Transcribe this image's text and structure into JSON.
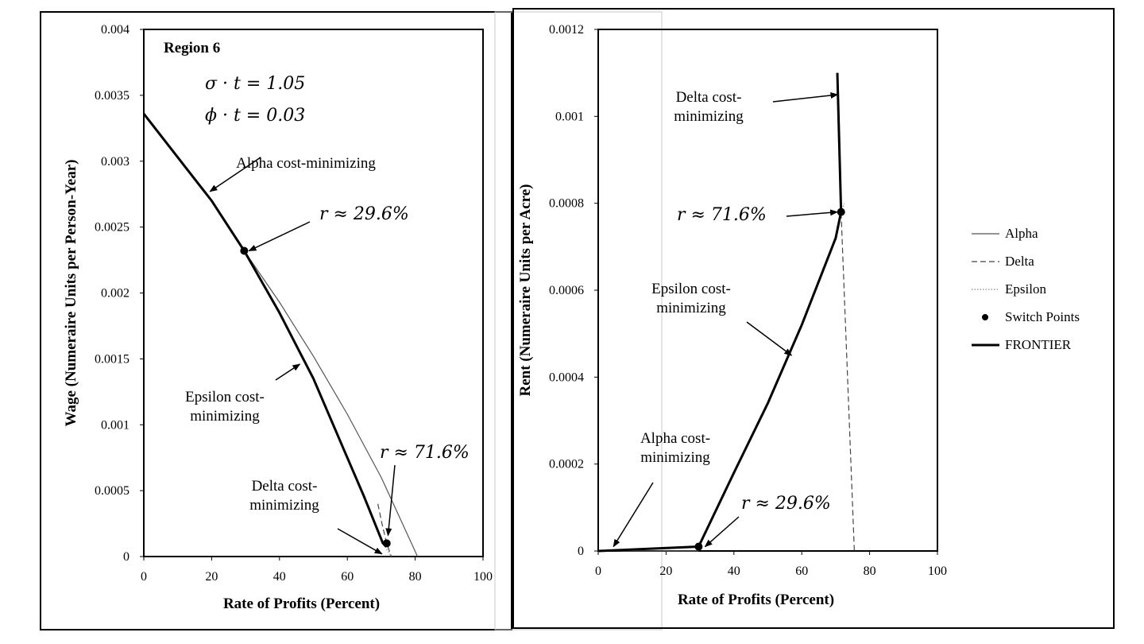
{
  "chart_data": [
    {
      "type": "line",
      "panel_label": "Region 6",
      "params": [
        "σ · t = 1.05",
        "ϕ · t = 0.03"
      ],
      "xlabel": "Rate of Profits (Percent)",
      "ylabel": "Wage (Numeraire Units per Person-Year)",
      "xlim": [
        0,
        100
      ],
      "ylim": [
        0,
        0.004
      ],
      "x_ticks": [
        "0",
        "20",
        "40",
        "60",
        "80",
        "100"
      ],
      "y_ticks": [
        "0",
        "0.0005",
        "0.001",
        "0.0015",
        "0.002",
        "0.0025",
        "0.003",
        "0.0035",
        "0.004"
      ],
      "grid": false,
      "series": [
        {
          "name": "Alpha",
          "style": "solid-thin",
          "x": [
            0,
            10,
            20,
            29.6,
            40,
            50,
            60,
            70,
            80.7
          ],
          "y": [
            0.00336,
            0.00303,
            0.0027,
            0.00232,
            0.00193,
            0.00152,
            0.00108,
            0.0006,
            0.0
          ]
        },
        {
          "name": "Delta",
          "style": "dashed",
          "x": [
            69.0,
            70.2,
            71.6,
            73.0
          ],
          "y": [
            0.0004,
            0.00025,
            0.0001,
            0.0
          ]
        },
        {
          "name": "Epsilon",
          "style": "dotted",
          "x": [
            29.6,
            40,
            50,
            60,
            65,
            70.5,
            73.0
          ],
          "y": [
            0.00232,
            0.00185,
            0.00135,
            0.00075,
            0.00045,
            0.0001,
            0.0
          ]
        },
        {
          "name": "FRONTIER",
          "style": "solid-thick",
          "x": [
            0,
            10,
            20,
            29.6,
            40,
            50,
            60,
            65,
            70.5,
            71.6
          ],
          "y": [
            0.00336,
            0.00303,
            0.0027,
            0.00232,
            0.00185,
            0.00135,
            0.00075,
            0.00045,
            0.0001,
            0.0001
          ]
        }
      ],
      "switch_points": [
        {
          "x": 29.6,
          "y": 0.00232
        },
        {
          "x": 71.6,
          "y": 0.0001
        }
      ],
      "annotations": [
        {
          "text": "Alpha cost-minimizing",
          "lines": [
            "Alpha cost-minimizing"
          ],
          "target": [
            19.5,
            0.00277
          ]
        },
        {
          "text": "r ≈ 29.6%",
          "lines": [
            "r ≈ 29.6%"
          ],
          "target": [
            31.0,
            0.00232
          ]
        },
        {
          "text": "Epsilon cost-minimizing",
          "lines": [
            "Epsilon cost-",
            "minimizing"
          ],
          "target": [
            46.0,
            0.00146
          ]
        },
        {
          "text": "r ≈ 71.6%",
          "lines": [
            "r ≈ 71.6%"
          ],
          "target": [
            72.0,
            0.00016
          ]
        },
        {
          "text": "Delta cost-minimizing",
          "lines": [
            "Delta cost-",
            "minimizing"
          ],
          "target": [
            70.2,
            2e-05
          ]
        }
      ]
    },
    {
      "type": "line",
      "xlabel": "Rate of Profits (Percent)",
      "ylabel": "Rent (Numeraire Units per Acre)",
      "xlim": [
        0,
        100
      ],
      "ylim": [
        0,
        0.0012
      ],
      "x_ticks": [
        "0",
        "20",
        "40",
        "60",
        "80",
        "100"
      ],
      "y_ticks": [
        "0",
        "0.0002",
        "0.0004",
        "0.0006",
        "0.0008",
        "0.001",
        "0.0012"
      ],
      "grid": false,
      "series": [
        {
          "name": "Alpha",
          "style": "solid-thin",
          "x": [
            0,
            29.6
          ],
          "y": [
            0.0,
            0.0
          ]
        },
        {
          "name": "Delta",
          "style": "dashed",
          "x": [
            70.5,
            71.6,
            75.5
          ],
          "y": [
            0.0011,
            0.00078,
            0.0
          ]
        },
        {
          "name": "Epsilon",
          "style": "dotted",
          "x": [
            29.6,
            40,
            50,
            60,
            70,
            71.6,
            72.5
          ],
          "y": [
            1e-05,
            0.00018,
            0.00034,
            0.00052,
            0.00072,
            0.00078,
            0.0008
          ]
        },
        {
          "name": "FRONTIER",
          "style": "solid-thick",
          "x": [
            0,
            29.6,
            40,
            50,
            60,
            70,
            71.6,
            70.5
          ],
          "y": [
            0.0,
            1e-05,
            0.00018,
            0.00034,
            0.00052,
            0.00072,
            0.00078,
            0.0011
          ]
        }
      ],
      "switch_points": [
        {
          "x": 29.6,
          "y": 1e-05
        },
        {
          "x": 71.6,
          "y": 0.00078
        }
      ],
      "annotations": [
        {
          "text": "Delta cost-minimizing",
          "lines": [
            "Delta cost-",
            "minimizing"
          ],
          "target": [
            70.6,
            0.00105
          ]
        },
        {
          "text": "r ≈ 71.6%",
          "lines": [
            "r ≈ 71.6%"
          ],
          "target": [
            70.5,
            0.00078
          ]
        },
        {
          "text": "Epsilon cost-minimizing",
          "lines": [
            "Epsilon cost-",
            "minimizing"
          ],
          "target": [
            57.0,
            0.00045
          ]
        },
        {
          "text": "Alpha cost-minimizing",
          "lines": [
            "Alpha cost-",
            "minimizing"
          ],
          "target": [
            4.5,
            1e-05
          ]
        },
        {
          "text": "r ≈ 29.6%",
          "lines": [
            "r ≈ 29.6%"
          ],
          "target": [
            31.5,
            1e-05
          ]
        }
      ]
    }
  ],
  "legend": {
    "placement": "right",
    "items": [
      {
        "label": "Alpha",
        "style": "solid-thin"
      },
      {
        "label": "Delta",
        "style": "dashed"
      },
      {
        "label": "Epsilon",
        "style": "dotted"
      },
      {
        "label": "Switch Points",
        "style": "point"
      },
      {
        "label": "FRONTIER",
        "style": "solid-thick"
      }
    ]
  }
}
